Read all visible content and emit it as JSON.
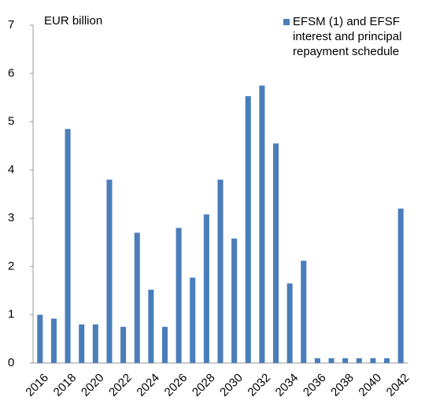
{
  "chart_data": {
    "type": "bar",
    "y_label": "EUR billion",
    "categories": [
      "2016",
      null,
      "2018",
      null,
      "2020",
      null,
      "2022",
      null,
      "2024",
      null,
      "2026",
      null,
      "2028",
      null,
      "2030",
      null,
      "2032",
      null,
      "2034",
      null,
      "2036",
      null,
      "2038",
      null,
      "2040",
      null,
      "2042"
    ],
    "series": [
      {
        "name": "EFSM (1) and EFSF interest and principal repayment schedule",
        "color": "#4a7ebb",
        "values": [
          1.0,
          0.92,
          4.85,
          0.8,
          0.8,
          3.8,
          0.75,
          2.7,
          1.52,
          0.75,
          2.8,
          1.77,
          3.08,
          3.8,
          2.58,
          5.53,
          5.75,
          4.55,
          1.65,
          2.12,
          0.1,
          0.1,
          0.1,
          0.1,
          0.1,
          0.1,
          3.2
        ]
      }
    ],
    "ylim": [
      0,
      7
    ],
    "yticks": [
      0,
      1,
      2,
      3,
      4,
      5,
      6,
      7
    ]
  }
}
